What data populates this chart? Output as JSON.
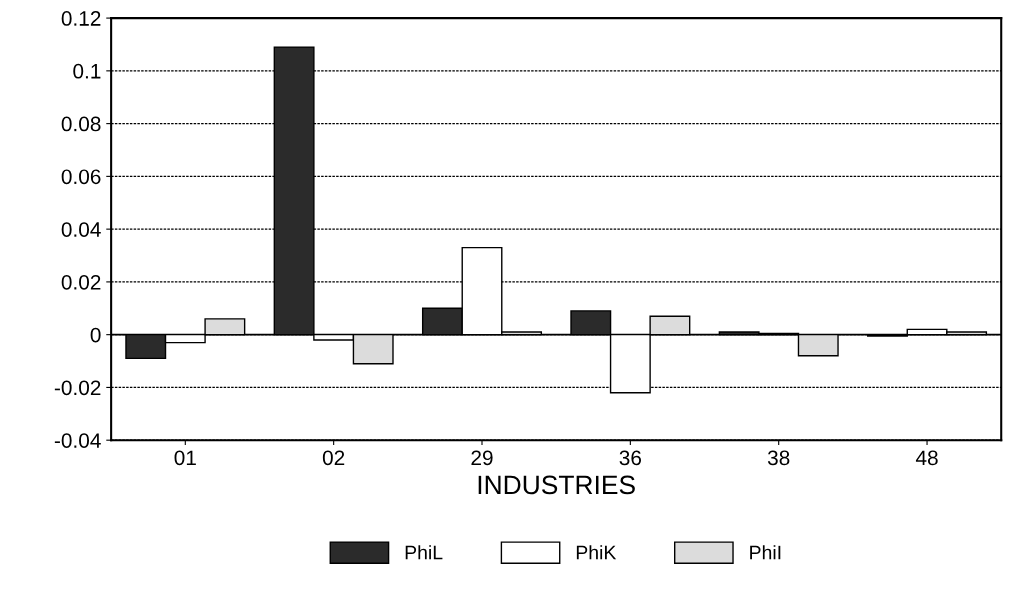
{
  "chart_data": {
    "type": "bar",
    "xlabel": "INDUSTRIES",
    "categories": [
      "01",
      "02",
      "29",
      "36",
      "38",
      "48"
    ],
    "series": [
      {
        "name": "PhiL",
        "color": "#2b2b2b",
        "values": [
          -0.009,
          0.109,
          0.01,
          0.009,
          0.001,
          -0.0005
        ]
      },
      {
        "name": "PhiK",
        "color": "#ffffff",
        "values": [
          -0.003,
          -0.002,
          0.033,
          -0.022,
          0.0005,
          0.002
        ]
      },
      {
        "name": "PhiI",
        "color": "#dcdcdc",
        "values": [
          0.006,
          -0.011,
          0.001,
          0.007,
          -0.008,
          0.001
        ]
      }
    ],
    "ylim": [
      -0.04,
      0.12
    ],
    "yticks": [
      {
        "value": -0.04,
        "label": "-0.04"
      },
      {
        "value": -0.02,
        "label": "-0.02"
      },
      0,
      0.02,
      0.04,
      0.06,
      0.08,
      0.1,
      0.12
    ],
    "grid": "y",
    "legend": "bottom"
  }
}
